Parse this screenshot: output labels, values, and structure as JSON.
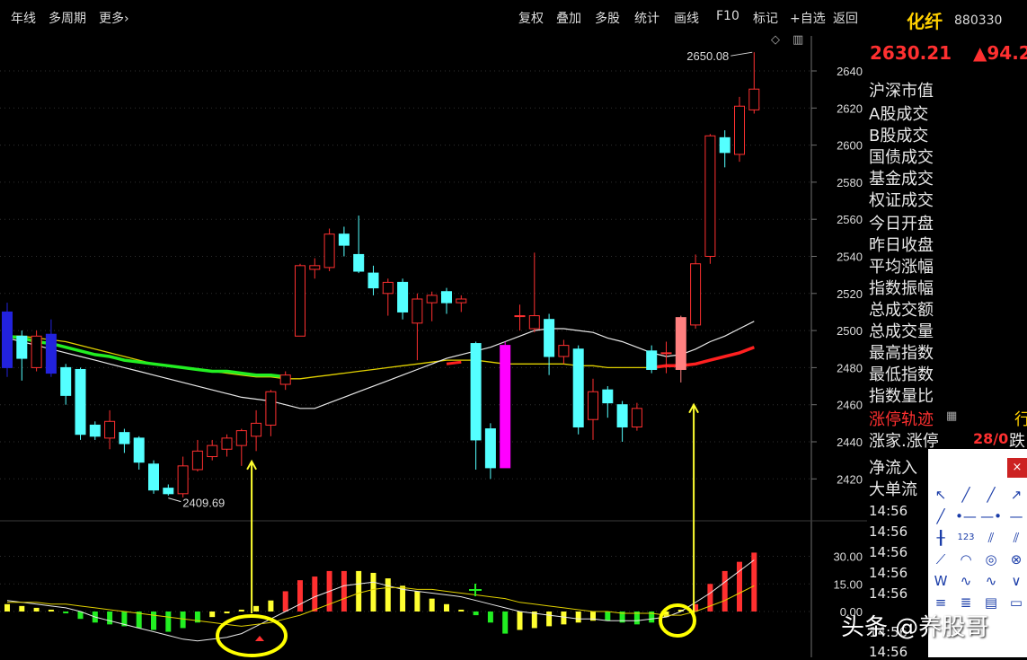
{
  "toolbar": {
    "period_label": "年线",
    "multi_period_label": "多周期",
    "more_label": "更多",
    "more_arrow": "›",
    "right_items": [
      "复权",
      "叠加",
      "多股",
      "统计",
      "画线",
      "F10",
      "标记",
      "+自选",
      "返回"
    ],
    "diamond_icon": "◇",
    "panel_icon": "▥"
  },
  "right_panel": {
    "name": "化纤",
    "code": "880330",
    "price": "2630.21",
    "change": "▲94.2",
    "labels": [
      "沪深市值",
      "A股成交",
      "B股成交",
      "国债成交",
      "基金成交",
      "权证成交",
      "今日开盘",
      "昨日收盘",
      "平均涨幅",
      "指数振幅",
      "总成交额",
      "总成交量",
      "最高指数",
      "最低指数",
      "指数量比"
    ],
    "limit_track": "涨停轨迹",
    "limit_track_right": "行",
    "up_count_label": "涨家.涨停",
    "up_count_value": "28/0",
    "down_char": "跌",
    "net_inflow": "净流入",
    "big_order": "大单流",
    "times": [
      "14:56",
      "14:56",
      "14:56",
      "14:56",
      "14:56",
      "14:56",
      "14:56"
    ],
    "limit_track_color": "#ff3030"
  },
  "palette": {
    "close_label": "×",
    "tool_icons": [
      "cursor-icon",
      "line-icon",
      "ray-icon",
      "arrow-line-icon",
      "segment-icon",
      "horizontal-line-icon",
      "horizontal-ray-icon",
      "horizontal-segment-icon",
      "vertical-line-icon",
      "number-label-icon",
      "parallel-lines-icon",
      "channel-icon",
      "fan-icon",
      "arc-icon",
      "circle-icon",
      "gann-icon",
      "wave-icon",
      "zigzag-icon",
      "trend-icon",
      "v-pattern-icon",
      "level-lines-icon",
      "fib-lines-icon",
      "cycle-lines-icon",
      "box-icon"
    ],
    "tool_glyphs": [
      "↖",
      "╱",
      "╱",
      "↗",
      "╱",
      "•—",
      "—•",
      "—",
      "╂",
      "123",
      "⫽",
      "⫽",
      "⟋",
      "◠",
      "◎",
      "⊗",
      "W",
      "∿",
      "∿",
      "∨",
      "≡",
      "≣",
      "▤",
      "▭"
    ]
  },
  "watermark": "头条 @养股哥",
  "chart_data": {
    "type": "candlestick",
    "main_y_ticks": [
      2640,
      2620,
      2600,
      2580,
      2560,
      2540,
      2520,
      2500,
      2480,
      2460,
      2440,
      2420
    ],
    "main_ylim": [
      2409.69,
      2650.08
    ],
    "high_annotation": "2650.08",
    "low_annotation": "2409.69",
    "sub_y_ticks": [
      "30.00",
      "15.00",
      "0.00"
    ],
    "sub_ylim": [
      -15,
      35
    ],
    "colors": {
      "up": "#ff3030",
      "down": "#54ffff",
      "ma_white": "#e8e8e8",
      "ma_yellow": "#e0d000",
      "arrow": "#ffff30",
      "circle": "#ffff00",
      "ma_green": "#22ee22",
      "ma_red": "#ff2020"
    },
    "candles": [
      {
        "o": 2510,
        "c": 2480,
        "h": 2515,
        "l": 2475,
        "color": "#2222dd"
      },
      {
        "o": 2497,
        "c": 2485,
        "h": 2500,
        "l": 2473,
        "color": null
      },
      {
        "o": 2480,
        "c": 2497,
        "h": 2500,
        "l": 2478,
        "color": null
      },
      {
        "o": 2498,
        "c": 2477,
        "h": 2506,
        "l": 2475,
        "color": "#2222dd"
      },
      {
        "o": 2480,
        "c": 2465,
        "h": 2482,
        "l": 2460,
        "color": null
      },
      {
        "o": 2479,
        "c": 2444,
        "h": 2480,
        "l": 2441,
        "color": null
      },
      {
        "o": 2449,
        "c": 2443,
        "h": 2451,
        "l": 2441,
        "color": null
      },
      {
        "o": 2442,
        "c": 2451,
        "h": 2457,
        "l": 2436,
        "color": null
      },
      {
        "o": 2445,
        "c": 2439,
        "h": 2447,
        "l": 2434,
        "color": null
      },
      {
        "o": 2442,
        "c": 2429,
        "h": 2443,
        "l": 2425,
        "color": null
      },
      {
        "o": 2428,
        "c": 2414,
        "h": 2430,
        "l": 2412,
        "color": null
      },
      {
        "o": 2415,
        "c": 2412,
        "h": 2417,
        "l": 2411,
        "color": null
      },
      {
        "o": 2412,
        "c": 2427,
        "h": 2432,
        "l": 2410,
        "color": null
      },
      {
        "o": 2425,
        "c": 2435,
        "h": 2441,
        "l": 2424,
        "color": null
      },
      {
        "o": 2432,
        "c": 2438,
        "h": 2441,
        "l": 2430,
        "color": null
      },
      {
        "o": 2436,
        "c": 2442,
        "h": 2444,
        "l": 2432,
        "color": null
      },
      {
        "o": 2438,
        "c": 2446,
        "h": 2447,
        "l": 2427,
        "color": null
      },
      {
        "o": 2443,
        "c": 2450,
        "h": 2457,
        "l": 2435,
        "color": null
      },
      {
        "o": 2449,
        "c": 2467,
        "h": 2468,
        "l": 2443,
        "color": null
      },
      {
        "o": 2471,
        "c": 2476,
        "h": 2478,
        "l": 2468,
        "color": null
      },
      {
        "o": 2497,
        "c": 2535,
        "h": 2536,
        "l": 2497,
        "color": null
      },
      {
        "o": 2533,
        "c": 2535,
        "h": 2539,
        "l": 2528,
        "color": null
      },
      {
        "o": 2534,
        "c": 2552,
        "h": 2555,
        "l": 2532,
        "color": null
      },
      {
        "o": 2552,
        "c": 2546,
        "h": 2556,
        "l": 2540,
        "color": null
      },
      {
        "o": 2541,
        "c": 2532,
        "h": 2562,
        "l": 2531,
        "color": null
      },
      {
        "o": 2531,
        "c": 2523,
        "h": 2535,
        "l": 2519,
        "color": null
      },
      {
        "o": 2520,
        "c": 2526,
        "h": 2528,
        "l": 2508,
        "color": null
      },
      {
        "o": 2526,
        "c": 2510,
        "h": 2528,
        "l": 2506,
        "color": null
      },
      {
        "o": 2504,
        "c": 2517,
        "h": 2520,
        "l": 2484,
        "color": null
      },
      {
        "o": 2515,
        "c": 2519,
        "h": 2521,
        "l": 2505,
        "color": null
      },
      {
        "o": 2521,
        "c": 2515,
        "h": 2523,
        "l": 2509,
        "color": null
      },
      {
        "o": 2515,
        "c": 2517,
        "h": 2519,
        "l": 2510,
        "color": null
      },
      {
        "o": 2493,
        "c": 2441,
        "h": 2494,
        "l": 2425,
        "color": null
      },
      {
        "o": 2447,
        "c": 2426,
        "h": 2450,
        "l": 2420,
        "color": null
      },
      {
        "o": 2426,
        "c": 2492,
        "h": 2494,
        "l": 2426,
        "color": "#ff00ff"
      },
      {
        "o": 2508,
        "c": 2508,
        "h": 2514,
        "l": 2500,
        "color": null
      },
      {
        "o": 2501,
        "c": 2508,
        "h": 2542,
        "l": 2499,
        "color": null
      },
      {
        "o": 2506,
        "c": 2486,
        "h": 2509,
        "l": 2476,
        "color": null
      },
      {
        "o": 2486,
        "c": 2492,
        "h": 2495,
        "l": 2482,
        "color": null
      },
      {
        "o": 2490,
        "c": 2448,
        "h": 2492,
        "l": 2444,
        "color": null
      },
      {
        "o": 2452,
        "c": 2467,
        "h": 2474,
        "l": 2441,
        "color": null
      },
      {
        "o": 2468,
        "c": 2461,
        "h": 2470,
        "l": 2453,
        "color": null
      },
      {
        "o": 2460,
        "c": 2448,
        "h": 2462,
        "l": 2440,
        "color": null
      },
      {
        "o": 2448,
        "c": 2458,
        "h": 2461,
        "l": 2446,
        "color": null
      },
      {
        "o": 2489,
        "c": 2479,
        "h": 2492,
        "l": 2477,
        "color": null
      },
      {
        "o": 2488,
        "c": 2488,
        "h": 2494,
        "l": 2477,
        "color": null
      },
      {
        "o": 2479,
        "c": 2507,
        "h": 2508,
        "l": 2472,
        "color": "#ff8080"
      },
      {
        "o": 2503,
        "c": 2536,
        "h": 2541,
        "l": 2501,
        "color": null
      },
      {
        "o": 2540,
        "c": 2605,
        "h": 2606,
        "l": 2536,
        "color": null
      },
      {
        "o": 2604,
        "c": 2596,
        "h": 2608,
        "l": 2588,
        "color": null
      },
      {
        "o": 2595,
        "c": 2621,
        "h": 2626,
        "l": 2591,
        "color": null
      },
      {
        "o": 2619,
        "c": 2630.21,
        "h": 2650.08,
        "l": 2617,
        "color": null
      }
    ],
    "ma_white": [
      2496,
      2494,
      2492,
      2490,
      2488,
      2486,
      2484,
      2482,
      2480,
      2478,
      2476,
      2474,
      2472,
      2470,
      2468,
      2466,
      2464,
      2463,
      2462,
      2460,
      2458,
      2458,
      2461,
      2464,
      2467,
      2470,
      2473,
      2476,
      2479,
      2482,
      2485,
      2487,
      2489,
      2491,
      2494,
      2497,
      2500,
      2501,
      2501,
      2500,
      2499,
      2496,
      2494,
      2491,
      2488,
      2486,
      2487,
      2490,
      2494,
      2497,
      2501,
      2505
    ],
    "ma_yellow": [
      2497,
      2497,
      2496,
      2495,
      2494,
      2492,
      2490,
      2488,
      2486,
      2484,
      2482,
      2481,
      2480,
      2479,
      2478,
      2477,
      2476,
      2475,
      2475,
      2474,
      2474,
      2475,
      2476,
      2477,
      2478,
      2479,
      2480,
      2481,
      2482,
      2483,
      2484,
      2484,
      2484,
      2483,
      2482,
      2482,
      2482,
      2482,
      2482,
      2481,
      2481,
      2480,
      2480,
      2480,
      2480,
      2481,
      2481,
      2482,
      2484,
      2486,
      2488,
      2491
    ],
    "macd_hist": [
      4,
      3,
      2,
      1,
      -1,
      -4,
      -6,
      -7,
      -8,
      -9,
      -10,
      -11,
      -9,
      -6,
      -3,
      -1,
      1,
      3,
      6,
      11,
      17,
      19,
      22,
      22,
      22,
      21,
      18,
      14,
      11,
      7,
      4,
      1,
      -2,
      -6,
      -12,
      -10,
      -9,
      -8,
      -7,
      -6,
      -5,
      -5,
      -6,
      -7,
      -6,
      -3,
      1,
      4,
      15,
      22,
      27,
      32
    ],
    "macd_dif": [
      6,
      5,
      4,
      3,
      2,
      0,
      -3,
      -5,
      -7,
      -9,
      -11,
      -13,
      -15,
      -16,
      -15,
      -14,
      -12,
      -8,
      -4,
      0,
      4,
      8,
      11,
      14,
      15,
      16,
      14,
      12,
      11,
      10,
      9,
      8,
      6,
      4,
      2,
      0,
      -1,
      -2,
      -3,
      -4,
      -4,
      -5,
      -5,
      -5,
      -4,
      -3,
      0,
      5,
      10,
      16,
      22,
      28
    ],
    "macd_dea": [
      5,
      5,
      5,
      4,
      4,
      3,
      2,
      1,
      0,
      -1,
      -2,
      -3,
      -4,
      -5,
      -6,
      -7,
      -8,
      -7,
      -6,
      -4,
      -2,
      1,
      4,
      7,
      10,
      12,
      13,
      13,
      12,
      12,
      11,
      10,
      9,
      8,
      7,
      5,
      4,
      3,
      2,
      1,
      0,
      0,
      -1,
      -1,
      -1,
      -2,
      -2,
      0,
      3,
      6,
      10,
      14
    ],
    "arrows": [
      {
        "x_index": 17,
        "price": 2443
      },
      {
        "x_index": 47,
        "price": 2460
      }
    ]
  }
}
